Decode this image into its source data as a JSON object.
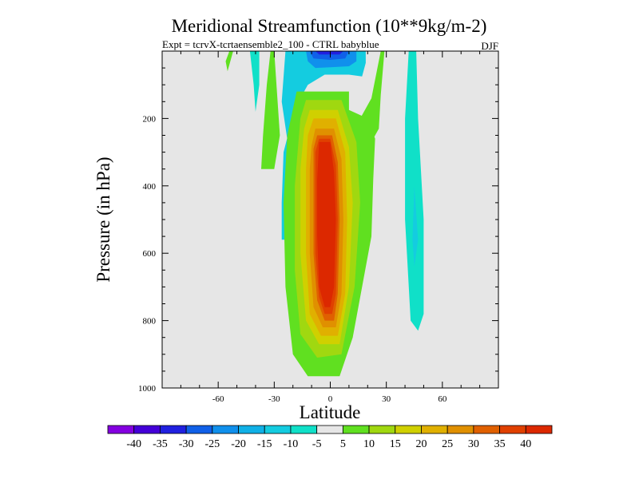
{
  "chart_data": {
    "type": "heatmap",
    "title": "Meridional Streamfunction (10**9kg/m-2)",
    "subtitle": "Expt = tcrvX-tcrtaensemble2_100 - CTRL babyblue",
    "season": "DJF",
    "xlabel": "Latitude",
    "ylabel": "Pressure (in hPa)",
    "xlim": [
      -90,
      90
    ],
    "ylim": [
      1000,
      0
    ],
    "grid": false,
    "x_ticks": [
      -60,
      -30,
      0,
      30,
      60
    ],
    "y_ticks": [
      200,
      400,
      600,
      800,
      1000
    ],
    "background_color": "#e6e6e6",
    "colorbar": {
      "position": "bottom",
      "labels": [
        "-40",
        "-35",
        "-30",
        "-25",
        "-20",
        "-15",
        "-10",
        "-5",
        "5",
        "10",
        "15",
        "20",
        "25",
        "30",
        "35",
        "40"
      ],
      "colors": [
        "#8400e0",
        "#4400d8",
        "#2020e0",
        "#1060e8",
        "#1090ec",
        "#10b0e6",
        "#14cce0",
        "#10e0c8",
        "#e6e6e6",
        "#60e020",
        "#a0d810",
        "#d0d000",
        "#e0b000",
        "#e09000",
        "#e06000",
        "#e04000",
        "#dc2800"
      ]
    },
    "regions": [
      {
        "name": "cell-negative-upper",
        "value": -15,
        "color": "#14cce0",
        "points": [
          [
            -24,
            0
          ],
          [
            19,
            0
          ],
          [
            19,
            35
          ],
          [
            17,
            75
          ],
          [
            10,
            70
          ],
          [
            -3,
            70
          ],
          [
            -12,
            100
          ],
          [
            -19,
            170
          ],
          [
            -25,
            300
          ],
          [
            -26,
            450
          ],
          [
            -26,
            560
          ],
          [
            -20,
            560
          ],
          [
            -17,
            450
          ],
          [
            -22,
            300
          ],
          [
            -26,
            150
          ]
        ]
      },
      {
        "name": "cell-negative-core-1",
        "value": -25,
        "color": "#1090ec",
        "points": [
          [
            -13,
            0
          ],
          [
            14,
            0
          ],
          [
            14,
            30
          ],
          [
            10,
            45
          ],
          [
            0,
            48
          ],
          [
            -8,
            50
          ],
          [
            -12,
            30
          ]
        ]
      },
      {
        "name": "cell-negative-core-2",
        "value": -30,
        "color": "#1060e8",
        "points": [
          [
            -11,
            0
          ],
          [
            10,
            0
          ],
          [
            8,
            22
          ],
          [
            0,
            26
          ],
          [
            -9,
            22
          ]
        ]
      },
      {
        "name": "cell-negative-core-3",
        "value": -35,
        "color": "#2020e0",
        "points": [
          [
            -8,
            0
          ],
          [
            7,
            0
          ],
          [
            5,
            10
          ],
          [
            -6,
            10
          ]
        ]
      },
      {
        "name": "band-positive-nh",
        "value": 5,
        "color": "#60e020",
        "points": [
          [
            27,
            0
          ],
          [
            29,
            0
          ],
          [
            27,
            130
          ],
          [
            26,
            230
          ],
          [
            20,
            290
          ],
          [
            14,
            320
          ],
          [
            13,
            230
          ],
          [
            22,
            140
          ]
        ]
      },
      {
        "name": "band-positive-sh",
        "value": 5,
        "color": "#60e020",
        "points": [
          [
            -30,
            0
          ],
          [
            -32,
            0
          ],
          [
            -34,
            100
          ],
          [
            -36,
            250
          ],
          [
            -37,
            350
          ],
          [
            -30,
            350
          ],
          [
            -27,
            250
          ]
        ]
      },
      {
        "name": "band-negative-sh-outer",
        "value": -5,
        "color": "#10e0c8",
        "points": [
          [
            -43,
            0
          ],
          [
            -38,
            0
          ],
          [
            -38,
            100
          ],
          [
            -40,
            180
          ],
          [
            -41,
            100
          ]
        ]
      },
      {
        "name": "band-negative-nh-outer",
        "value": -5,
        "color": "#10e0c8",
        "points": [
          [
            42,
            0
          ],
          [
            46,
            0
          ],
          [
            47,
            200
          ],
          [
            50,
            500
          ],
          [
            50,
            780
          ],
          [
            47,
            830
          ],
          [
            43,
            800
          ],
          [
            40,
            500
          ],
          [
            40,
            200
          ]
        ]
      },
      {
        "name": "band-negative-nh-inner",
        "value": -10,
        "color": "#14cce0",
        "points": [
          [
            45,
            400
          ],
          [
            47,
            560
          ],
          [
            45,
            640
          ],
          [
            44,
            560
          ]
        ]
      },
      {
        "name": "band-positive-sh-far",
        "value": 5,
        "color": "#60e020",
        "points": [
          [
            -54,
            0
          ],
          [
            -52,
            0
          ],
          [
            -55,
            60
          ],
          [
            -56,
            30
          ]
        ]
      },
      {
        "name": "cell-positive-l1",
        "value": 5,
        "color": "#60e020",
        "points": [
          [
            -18,
            120
          ],
          [
            10,
            120
          ],
          [
            10,
            175
          ],
          [
            20,
            200
          ],
          [
            24,
            260
          ],
          [
            23,
            380
          ],
          [
            22,
            550
          ],
          [
            12,
            850
          ],
          [
            5,
            965
          ],
          [
            -12,
            965
          ],
          [
            -20,
            900
          ],
          [
            -24,
            700
          ],
          [
            -25,
            450
          ],
          [
            -23,
            250
          ]
        ]
      },
      {
        "name": "cell-positive-l2",
        "value": 10,
        "color": "#a0d810",
        "points": [
          [
            -13,
            145
          ],
          [
            6,
            145
          ],
          [
            14,
            270
          ],
          [
            16,
            450
          ],
          [
            13,
            700
          ],
          [
            6,
            900
          ],
          [
            -7,
            910
          ],
          [
            -16,
            840
          ],
          [
            -19,
            650
          ],
          [
            -19,
            400
          ],
          [
            -16,
            200
          ]
        ]
      },
      {
        "name": "cell-positive-l3",
        "value": 15,
        "color": "#d0d000",
        "points": [
          [
            -11,
            175
          ],
          [
            4,
            175
          ],
          [
            10,
            285
          ],
          [
            12,
            450
          ],
          [
            10,
            700
          ],
          [
            5,
            870
          ],
          [
            -6,
            870
          ],
          [
            -13,
            800
          ],
          [
            -16,
            600
          ],
          [
            -16,
            350
          ],
          [
            -14,
            230
          ]
        ]
      },
      {
        "name": "cell-positive-l4",
        "value": 20,
        "color": "#e0b000",
        "points": [
          [
            -9,
            200
          ],
          [
            3,
            200
          ],
          [
            8,
            300
          ],
          [
            9,
            500
          ],
          [
            8,
            720
          ],
          [
            4,
            845
          ],
          [
            -5,
            845
          ],
          [
            -11,
            780
          ],
          [
            -13,
            600
          ],
          [
            -13,
            350
          ],
          [
            -12,
            250
          ]
        ]
      },
      {
        "name": "cell-positive-l5",
        "value": 25,
        "color": "#e09000",
        "points": [
          [
            -8,
            230
          ],
          [
            2,
            230
          ],
          [
            6,
            320
          ],
          [
            7,
            500
          ],
          [
            6,
            720
          ],
          [
            3,
            820
          ],
          [
            -4,
            820
          ],
          [
            -9,
            760
          ],
          [
            -11,
            600
          ],
          [
            -11,
            350
          ],
          [
            -10,
            280
          ]
        ]
      },
      {
        "name": "cell-positive-l6",
        "value": 30,
        "color": "#e06000",
        "points": [
          [
            -7,
            250
          ],
          [
            1,
            250
          ],
          [
            4,
            330
          ],
          [
            5,
            500
          ],
          [
            4,
            720
          ],
          [
            2,
            800
          ],
          [
            -3,
            800
          ],
          [
            -7,
            740
          ],
          [
            -9,
            600
          ],
          [
            -9,
            360
          ],
          [
            -9,
            290
          ]
        ]
      },
      {
        "name": "cell-positive-l7",
        "value": 35,
        "color": "#e04000",
        "points": [
          [
            -6,
            260
          ],
          [
            0,
            260
          ],
          [
            3,
            340
          ],
          [
            4,
            500
          ],
          [
            3,
            720
          ],
          [
            1,
            780
          ],
          [
            -3,
            780
          ],
          [
            -6,
            730
          ],
          [
            -8,
            600
          ],
          [
            -8,
            360
          ],
          [
            -8,
            300
          ]
        ]
      },
      {
        "name": "cell-positive-core",
        "value": 40,
        "color": "#dc2800",
        "points": [
          [
            -6,
            270
          ],
          [
            0,
            270
          ],
          [
            2,
            360
          ],
          [
            3,
            500
          ],
          [
            2,
            700
          ],
          [
            0,
            760
          ],
          [
            -3,
            760
          ],
          [
            -6,
            700
          ],
          [
            -7,
            550
          ],
          [
            -7,
            380
          ]
        ]
      }
    ]
  }
}
